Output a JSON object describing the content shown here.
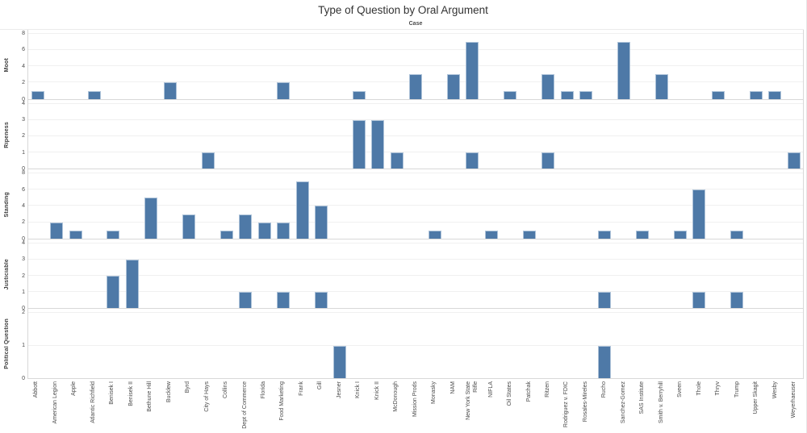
{
  "chart_data": {
    "type": "bar",
    "title": "Type of Question by Oral Argument",
    "column_axis_label": "Case",
    "legend": "none",
    "grid": true,
    "categories": [
      "Abbott",
      "American Legion",
      "Apple",
      "Atlantic Richfield",
      "Benisek I",
      "Benisek II",
      "Bethune Hill",
      "Bucklew",
      "Byrd",
      "City of Hays",
      "Collins",
      "Dept of Commerce",
      "Florida",
      "Food Marketing",
      "Frank",
      "Gill",
      "Jesner",
      "Knick I",
      "Knick II",
      "McDonough",
      "Mission Prods",
      "Monasky",
      "NAM",
      "New York State Rifle",
      "NIFLA",
      "Oil States",
      "Patchak",
      "Ritzen",
      "Rodriguez v. FDIC",
      "Rosales-Mireles",
      "Rucho",
      "Sanchez-Gomez",
      "SAS Institute",
      "Smith v. Berryhill",
      "Sveen",
      "Thole",
      "Thryv",
      "Trump",
      "Upper Skagit",
      "Wesby",
      "Weyerhaeuser"
    ],
    "wrapped_labels": {
      "23": "New York State\nRifle"
    },
    "series": [
      {
        "name": "Moot",
        "ylim": [
          0,
          8
        ],
        "ticks": [
          0,
          2,
          4,
          6,
          8
        ],
        "values": [
          1,
          0,
          0,
          1,
          0,
          0,
          0,
          2,
          0,
          0,
          0,
          0,
          0,
          2,
          0,
          0,
          0,
          1,
          0,
          0,
          3,
          0,
          3,
          7,
          0,
          1,
          0,
          3,
          1,
          1,
          0,
          7,
          0,
          3,
          0,
          0,
          1,
          0,
          1,
          1,
          0
        ]
      },
      {
        "name": "Ripeness",
        "ylim": [
          0,
          4
        ],
        "ticks": [
          0,
          1,
          2,
          3,
          4
        ],
        "values": [
          0,
          0,
          0,
          0,
          0,
          0,
          0,
          0,
          0,
          1,
          0,
          0,
          0,
          0,
          0,
          0,
          0,
          3,
          3,
          1,
          0,
          0,
          0,
          1,
          0,
          0,
          0,
          1,
          0,
          0,
          0,
          0,
          0,
          0,
          0,
          0,
          0,
          0,
          0,
          0,
          1
        ]
      },
      {
        "name": "Standing",
        "ylim": [
          0,
          8
        ],
        "ticks": [
          0,
          2,
          4,
          6,
          8
        ],
        "values": [
          0,
          2,
          1,
          0,
          1,
          0,
          5,
          0,
          3,
          0,
          1,
          3,
          2,
          2,
          7,
          4,
          0,
          0,
          0,
          0,
          0,
          1,
          0,
          0,
          1,
          0,
          1,
          0,
          0,
          0,
          1,
          0,
          1,
          0,
          1,
          6,
          0,
          1,
          0,
          0,
          0
        ]
      },
      {
        "name": "Justiciable",
        "ylim": [
          0,
          4
        ],
        "ticks": [
          0,
          1,
          2,
          3,
          4
        ],
        "values": [
          0,
          0,
          0,
          0,
          2,
          3,
          0,
          0,
          0,
          0,
          0,
          1,
          0,
          1,
          0,
          1,
          0,
          0,
          0,
          0,
          0,
          0,
          0,
          0,
          0,
          0,
          0,
          0,
          0,
          0,
          1,
          0,
          0,
          0,
          0,
          1,
          0,
          1,
          0,
          0,
          0
        ]
      },
      {
        "name": "Political Question",
        "ylim": [
          0,
          2
        ],
        "ticks": [
          0,
          1,
          2
        ],
        "values": [
          0,
          0,
          0,
          0,
          0,
          0,
          0,
          0,
          0,
          0,
          0,
          0,
          0,
          0,
          0,
          0,
          1,
          0,
          0,
          0,
          0,
          0,
          0,
          0,
          0,
          0,
          0,
          0,
          0,
          0,
          1,
          0,
          0,
          0,
          0,
          0,
          0,
          0,
          0,
          0,
          0
        ]
      }
    ],
    "colors": {
      "bar_fill": "#4e79a7",
      "bar_border": "#aec3d9",
      "gridline": "#f0f0f0",
      "axis_line": "#d8d8d8",
      "title_text": "#333333",
      "label_text": "#4a4a4a"
    }
  }
}
